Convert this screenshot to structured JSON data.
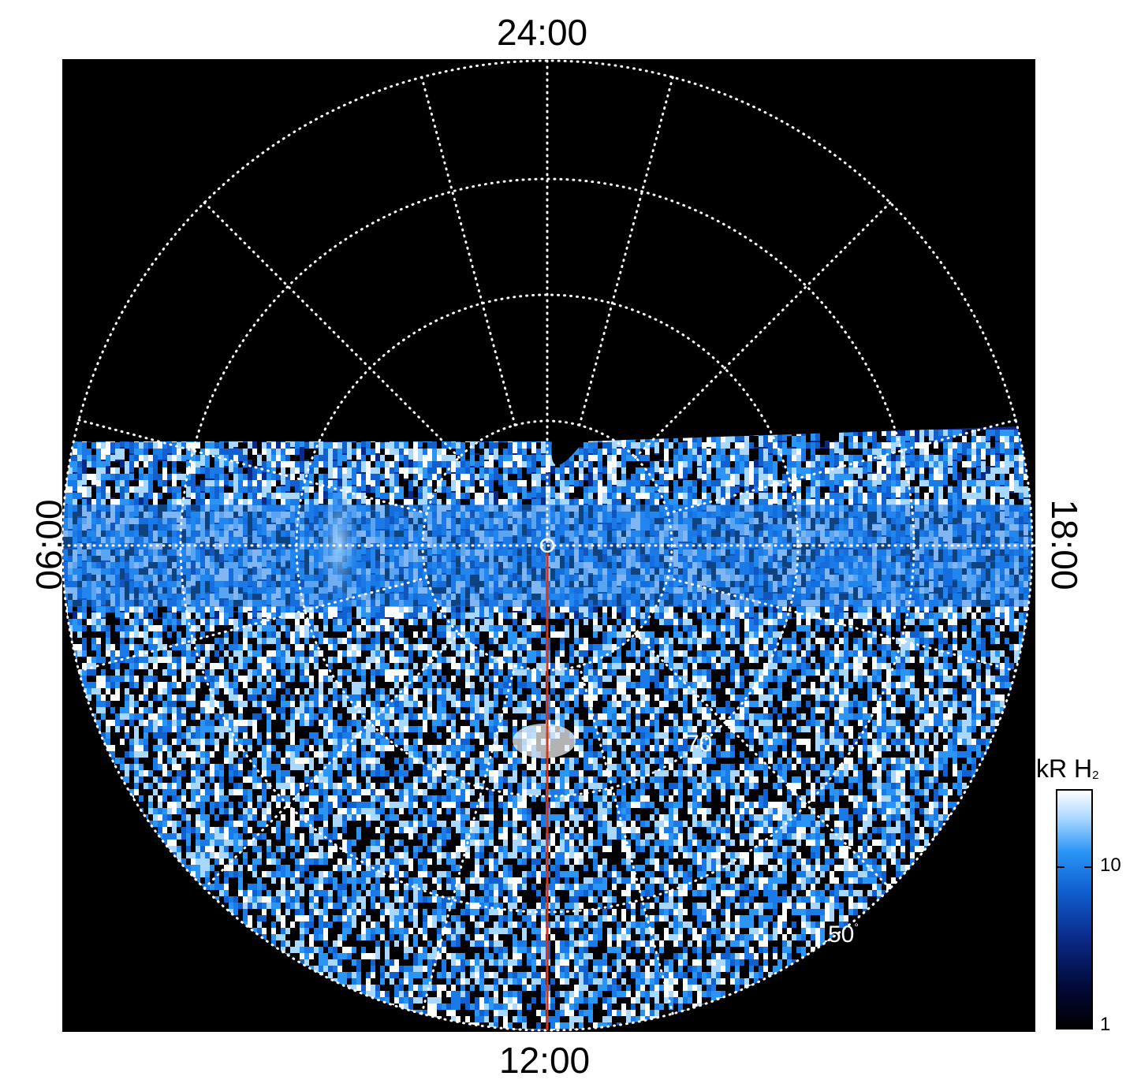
{
  "figure": {
    "local_time_labels": {
      "top": "24:00",
      "bottom": "12:00",
      "left": "06:00",
      "right": "18:00"
    },
    "latitude_labels": {
      "inner": "70",
      "outer": "50",
      "outer_unit": "°"
    },
    "colorbar": {
      "title": "kR H",
      "title_subscript": "2",
      "tick_labels": [
        "10",
        "1"
      ],
      "colors": [
        "#000000",
        "#020a3a",
        "#0a2a8a",
        "#1060d0",
        "#2a95f5",
        "#a8d8ff",
        "#ffffff"
      ]
    },
    "colors": {
      "background": "#000000",
      "grid": "#ffffff",
      "meridian_line": "#d2391c",
      "emission_dark": "#0a2a8a",
      "emission_mid": "#1a7ae8",
      "emission_bright": "#a8d8ff"
    }
  }
}
